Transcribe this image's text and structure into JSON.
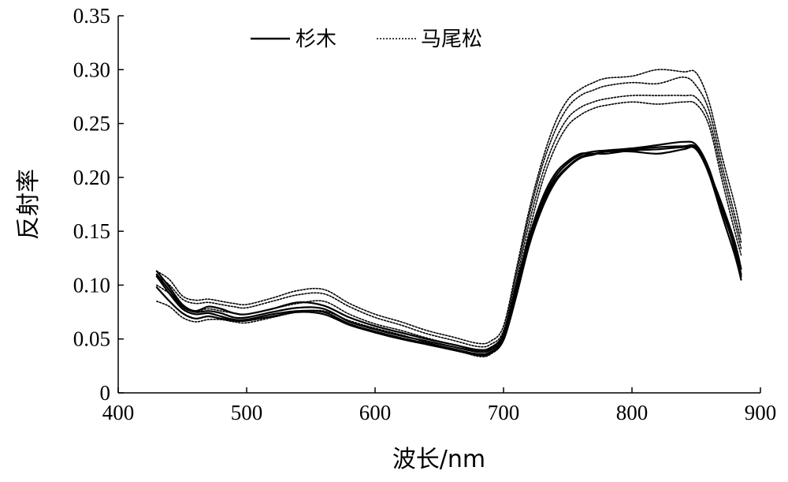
{
  "chart_data": {
    "type": "line",
    "xlabel": "波长/nm",
    "ylabel": "反射率",
    "xlim": [
      400,
      900
    ],
    "ylim": [
      0,
      0.35
    ],
    "xticks": [
      "400",
      "500",
      "600",
      "700",
      "800",
      "900"
    ],
    "yticks": [
      "0",
      "0.05",
      "0.10",
      "0.15",
      "0.20",
      "0.25",
      "0.30",
      "0.35"
    ],
    "grid": false,
    "legend_position": "top-center",
    "legend": [
      {
        "label": "杉木",
        "style": "solid",
        "color": "#000000"
      },
      {
        "label": "马尾松",
        "style": "dotted",
        "color": "#000000"
      }
    ],
    "x": [
      430,
      440,
      450,
      460,
      470,
      480,
      490,
      500,
      520,
      540,
      560,
      580,
      600,
      620,
      640,
      660,
      680,
      690,
      700,
      710,
      720,
      730,
      740,
      750,
      760,
      770,
      780,
      800,
      820,
      840,
      850,
      860,
      870,
      880,
      885
    ],
    "series": [
      {
        "group": "杉木",
        "style": "solid",
        "values": [
          0.113,
          0.098,
          0.082,
          0.076,
          0.08,
          0.078,
          0.074,
          0.073,
          0.078,
          0.084,
          0.081,
          0.07,
          0.062,
          0.056,
          0.05,
          0.045,
          0.04,
          0.042,
          0.055,
          0.1,
          0.145,
          0.18,
          0.203,
          0.215,
          0.222,
          0.222,
          0.224,
          0.226,
          0.228,
          0.229,
          0.228,
          0.205,
          0.175,
          0.14,
          0.115
        ]
      },
      {
        "group": "杉木",
        "style": "solid",
        "values": [
          0.11,
          0.095,
          0.08,
          0.075,
          0.076,
          0.074,
          0.07,
          0.07,
          0.075,
          0.079,
          0.078,
          0.066,
          0.059,
          0.053,
          0.048,
          0.043,
          0.038,
          0.04,
          0.052,
          0.095,
          0.14,
          0.176,
          0.2,
          0.213,
          0.221,
          0.224,
          0.225,
          0.227,
          0.23,
          0.233,
          0.23,
          0.208,
          0.17,
          0.135,
          0.11
        ]
      },
      {
        "group": "杉木",
        "style": "solid",
        "values": [
          0.108,
          0.092,
          0.078,
          0.073,
          0.074,
          0.071,
          0.068,
          0.068,
          0.073,
          0.076,
          0.075,
          0.064,
          0.057,
          0.051,
          0.046,
          0.041,
          0.036,
          0.038,
          0.05,
          0.092,
          0.138,
          0.173,
          0.197,
          0.21,
          0.219,
          0.222,
          0.222,
          0.225,
          0.226,
          0.228,
          0.226,
          0.204,
          0.173,
          0.133,
          0.108
        ]
      },
      {
        "group": "杉木",
        "style": "solid",
        "values": [
          0.098,
          0.085,
          0.074,
          0.069,
          0.071,
          0.069,
          0.067,
          0.067,
          0.071,
          0.075,
          0.073,
          0.063,
          0.056,
          0.05,
          0.045,
          0.04,
          0.035,
          0.037,
          0.049,
          0.09,
          0.137,
          0.171,
          0.195,
          0.209,
          0.218,
          0.221,
          0.224,
          0.224,
          0.222,
          0.226,
          0.227,
          0.203,
          0.165,
          0.128,
          0.105
        ]
      },
      {
        "group": "马尾松",
        "style": "dotted",
        "values": [
          0.113,
          0.105,
          0.09,
          0.086,
          0.087,
          0.085,
          0.083,
          0.082,
          0.088,
          0.095,
          0.096,
          0.083,
          0.073,
          0.066,
          0.058,
          0.052,
          0.046,
          0.048,
          0.062,
          0.115,
          0.17,
          0.215,
          0.25,
          0.272,
          0.282,
          0.288,
          0.292,
          0.294,
          0.3,
          0.298,
          0.297,
          0.27,
          0.22,
          0.175,
          0.148
        ]
      },
      {
        "group": "马尾松",
        "style": "dotted",
        "values": [
          0.109,
          0.1,
          0.087,
          0.083,
          0.084,
          0.082,
          0.08,
          0.079,
          0.085,
          0.091,
          0.092,
          0.08,
          0.07,
          0.063,
          0.055,
          0.049,
          0.043,
          0.045,
          0.058,
          0.11,
          0.165,
          0.21,
          0.243,
          0.265,
          0.276,
          0.281,
          0.285,
          0.288,
          0.287,
          0.293,
          0.285,
          0.262,
          0.212,
          0.165,
          0.14
        ]
      },
      {
        "group": "马尾松",
        "style": "dotted",
        "values": [
          0.1,
          0.092,
          0.08,
          0.076,
          0.078,
          0.076,
          0.074,
          0.073,
          0.078,
          0.083,
          0.085,
          0.073,
          0.064,
          0.058,
          0.051,
          0.045,
          0.039,
          0.041,
          0.054,
          0.104,
          0.158,
          0.202,
          0.234,
          0.255,
          0.265,
          0.27,
          0.273,
          0.276,
          0.276,
          0.276,
          0.274,
          0.254,
          0.205,
          0.158,
          0.134
        ]
      },
      {
        "group": "马尾松",
        "style": "dotted",
        "values": [
          0.085,
          0.08,
          0.07,
          0.066,
          0.068,
          0.068,
          0.066,
          0.065,
          0.07,
          0.075,
          0.076,
          0.067,
          0.06,
          0.054,
          0.047,
          0.041,
          0.034,
          0.036,
          0.05,
          0.099,
          0.15,
          0.195,
          0.227,
          0.248,
          0.258,
          0.264,
          0.267,
          0.27,
          0.268,
          0.27,
          0.268,
          0.248,
          0.198,
          0.15,
          0.128
        ]
      }
    ]
  }
}
